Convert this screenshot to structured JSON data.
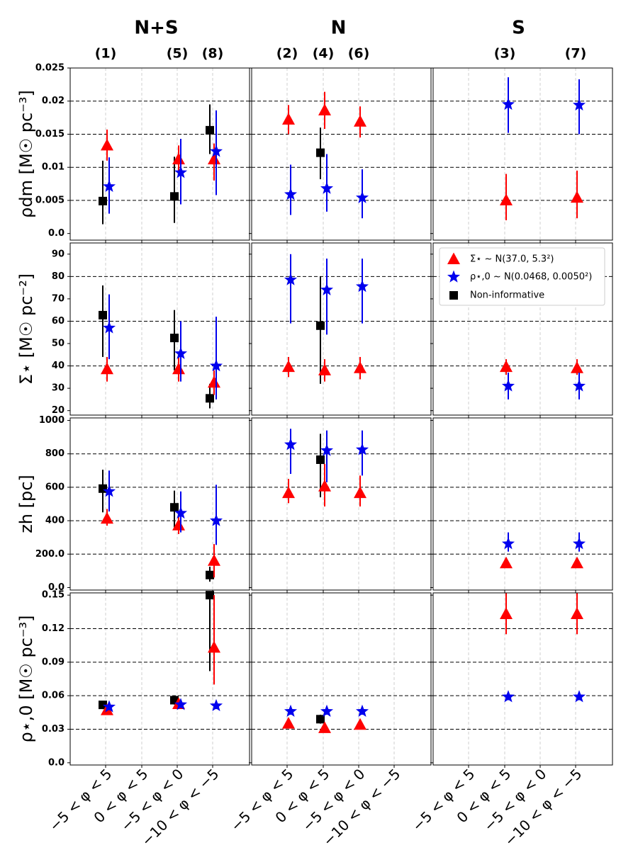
{
  "chart_data": {
    "type": "scatter",
    "columns": [
      {
        "title": "N+S",
        "models": [
          {
            "label": "(1)",
            "slot": 0
          },
          {
            "label": "(5)",
            "slot": 2
          },
          {
            "label": "(8)",
            "slot": 3
          }
        ]
      },
      {
        "title": "N",
        "models": [
          {
            "label": "(2)",
            "slot": 0
          },
          {
            "label": "(4)",
            "slot": 1
          },
          {
            "label": "(6)",
            "slot": 2
          }
        ]
      },
      {
        "title": "S",
        "models": [
          {
            "label": "(3)",
            "slot": 1
          },
          {
            "label": "(7)",
            "slot": 3
          }
        ]
      }
    ],
    "x_categories": [
      "−5 < φ < 5",
      "0 < φ < 5",
      "−5 < φ < 0",
      "−10 < φ < −5"
    ],
    "legend": [
      {
        "key": "tri",
        "label": "Σ⋆ ~ N(37.0, 5.3²)",
        "color": "#ff0000"
      },
      {
        "key": "star",
        "label": "ρ⋆,0 ~ N(0.0468, 0.0050²)",
        "color": "#0000ee"
      },
      {
        "key": "sq",
        "label": "Non-informative",
        "color": "#000000"
      }
    ],
    "rows": [
      {
        "ylabel": "ρdm [M☉ pc⁻³]",
        "ylim": [
          -0.001,
          0.025
        ],
        "ticks": [
          0.0,
          0.005,
          0.01,
          0.015,
          0.02,
          0.025
        ],
        "tick_labels": [
          "0.0",
          "0.005",
          "0.01",
          "0.015",
          "0.02",
          "0.025"
        ],
        "hlines": [
          0.005,
          0.01,
          0.015,
          0.02
        ],
        "series": {
          "sq": [
            [
              [
                0,
                0.0049,
                0.0014,
                0.011
              ],
              [
                2,
                0.0056,
                0.0016,
                0.0116
              ],
              [
                3,
                0.0156,
                0.012,
                0.0195
              ]
            ],
            [
              [
                1,
                0.0122,
                0.0082,
                0.016
              ]
            ],
            []
          ],
          "tri": [
            [
              [
                0,
                0.0133,
                0.011,
                0.0157
              ],
              [
                2,
                0.0112,
                0.009,
                0.0133
              ],
              [
                3,
                0.0112,
                0.008,
                0.0136
              ]
            ],
            [
              [
                0,
                0.0172,
                0.015,
                0.0194
              ],
              [
                1,
                0.0186,
                0.0158,
                0.0214
              ],
              [
                2,
                0.0169,
                0.0145,
                0.0192
              ]
            ],
            [
              [
                1,
                0.005,
                0.002,
                0.009
              ],
              [
                3,
                0.0054,
                0.0023,
                0.0095
              ]
            ]
          ],
          "star": [
            [
              [
                0,
                0.0071,
                0.003,
                0.0115
              ],
              [
                2,
                0.0092,
                0.0044,
                0.0143
              ],
              [
                3,
                0.0124,
                0.0058,
                0.0186
              ]
            ],
            [
              [
                0,
                0.0059,
                0.0028,
                0.0104
              ],
              [
                1,
                0.0068,
                0.0033,
                0.012
              ],
              [
                2,
                0.0054,
                0.0023,
                0.0097
              ]
            ],
            [
              [
                1,
                0.0195,
                0.0152,
                0.0236
              ],
              [
                3,
                0.0194,
                0.015,
                0.0233
              ]
            ]
          ]
        }
      },
      {
        "ylabel": "Σ⋆ [M☉ pc⁻²]",
        "ylim": [
          18,
          95
        ],
        "ticks": [
          20,
          30,
          40,
          50,
          60,
          70,
          80,
          90
        ],
        "tick_labels": [
          "20",
          "30",
          "40",
          "50",
          "60",
          "70",
          "80",
          "90"
        ],
        "hlines": [
          40,
          60,
          80
        ],
        "series": {
          "sq": [
            [
              [
                0,
                62.7,
                44,
                76
              ],
              [
                2,
                52.5,
                38,
                65
              ],
              [
                3,
                25.5,
                21,
                32
              ]
            ],
            [
              [
                1,
                58,
                32,
                80
              ]
            ],
            []
          ],
          "tri": [
            [
              [
                0,
                38.5,
                33,
                44
              ],
              [
                2,
                38.5,
                33,
                44
              ],
              [
                3,
                32.5,
                27,
                38
              ]
            ],
            [
              [
                0,
                39.5,
                35,
                44
              ],
              [
                1,
                38,
                33,
                43
              ],
              [
                2,
                39,
                34,
                44
              ]
            ],
            [
              [
                1,
                39.5,
                36,
                43
              ],
              [
                3,
                39,
                36,
                43
              ]
            ]
          ],
          "star": [
            [
              [
                0,
                57,
                43,
                72
              ],
              [
                2,
                45.5,
                33,
                60
              ],
              [
                3,
                40,
                25,
                62
              ]
            ],
            [
              [
                0,
                78.5,
                59,
                90
              ],
              [
                1,
                74,
                54,
                88
              ],
              [
                2,
                75.5,
                59,
                88
              ]
            ],
            [
              [
                1,
                31,
                25,
                37
              ],
              [
                3,
                31,
                25,
                37
              ]
            ]
          ]
        }
      },
      {
        "ylabel": "zh [pc]",
        "ylim": [
          -15,
          1015
        ],
        "ticks": [
          0,
          200,
          400,
          600,
          800,
          1000
        ],
        "tick_labels": [
          "0.0",
          "200.0",
          "400",
          "600",
          "800",
          "1000"
        ],
        "hlines": [
          200,
          400,
          600,
          800
        ],
        "series": {
          "sq": [
            [
              [
                0,
                592,
                450,
                705
              ],
              [
                2,
                480,
                360,
                580
              ],
              [
                3,
                75,
                35,
                125
              ]
            ],
            [
              [
                1,
                765,
                540,
                920
              ]
            ],
            []
          ],
          "tri": [
            [
              [
                0,
                412,
                370,
                470
              ],
              [
                2,
                372,
                320,
                430
              ],
              [
                3,
                160,
                60,
                260
              ]
            ],
            [
              [
                0,
                565,
                505,
                650
              ],
              [
                1,
                605,
                485,
                740
              ],
              [
                2,
                565,
                485,
                670
              ]
            ],
            [
              [
                1,
                145,
                125,
                170
              ],
              [
                3,
                145,
                125,
                170
              ]
            ]
          ],
          "star": [
            [
              [
                0,
                575,
                455,
                700
              ],
              [
                2,
                445,
                330,
                575
              ],
              [
                3,
                400,
                255,
                615
              ]
            ],
            [
              [
                0,
                855,
                680,
                950
              ],
              [
                1,
                820,
                630,
                940
              ],
              [
                2,
                825,
                670,
                940
              ]
            ],
            [
              [
                1,
                262,
                215,
                330
              ],
              [
                3,
                262,
                215,
                330
              ]
            ]
          ]
        }
      },
      {
        "ylabel": "ρ⋆,0 [M☉ pc⁻³]",
        "ylim": [
          -0.002,
          0.152
        ],
        "ticks": [
          0.0,
          0.03,
          0.06,
          0.09,
          0.12,
          0.15
        ],
        "tick_labels": [
          "0.0",
          "0.03",
          "0.06",
          "0.09",
          "0.12",
          "0.15"
        ],
        "hlines": [
          0.03,
          0.06,
          0.09,
          0.12
        ],
        "series": {
          "sq": [
            [
              [
                0,
                0.0518,
                0.048,
                0.055
              ],
              [
                2,
                0.056,
                0.052,
                0.06
              ],
              [
                3,
                0.15,
                0.082,
                0.152
              ]
            ],
            [
              [
                1,
                0.039,
                0.035,
                0.043
              ]
            ],
            []
          ],
          "tri": [
            [
              [
                0,
                0.047,
                0.043,
                0.051
              ],
              [
                2,
                0.0525,
                0.048,
                0.057
              ],
              [
                3,
                0.103,
                0.07,
                0.15
              ]
            ],
            [
              [
                0,
                0.035,
                0.032,
                0.038
              ],
              [
                1,
                0.031,
                0.028,
                0.035
              ],
              [
                2,
                0.034,
                0.031,
                0.038
              ]
            ],
            [
              [
                1,
                0.133,
                0.115,
                0.152
              ],
              [
                3,
                0.133,
                0.115,
                0.152
              ]
            ]
          ],
          "star": [
            [
              [
                0,
                0.05,
                0.047,
                0.053
              ],
              [
                2,
                0.052,
                0.049,
                0.055
              ],
              [
                3,
                0.051,
                0.048,
                0.054
              ]
            ],
            [
              [
                0,
                0.046,
                0.043,
                0.049
              ],
              [
                1,
                0.046,
                0.043,
                0.049
              ],
              [
                2,
                0.046,
                0.043,
                0.049
              ]
            ],
            [
              [
                1,
                0.059,
                0.056,
                0.062
              ],
              [
                3,
                0.059,
                0.056,
                0.062
              ]
            ]
          ]
        }
      }
    ]
  }
}
